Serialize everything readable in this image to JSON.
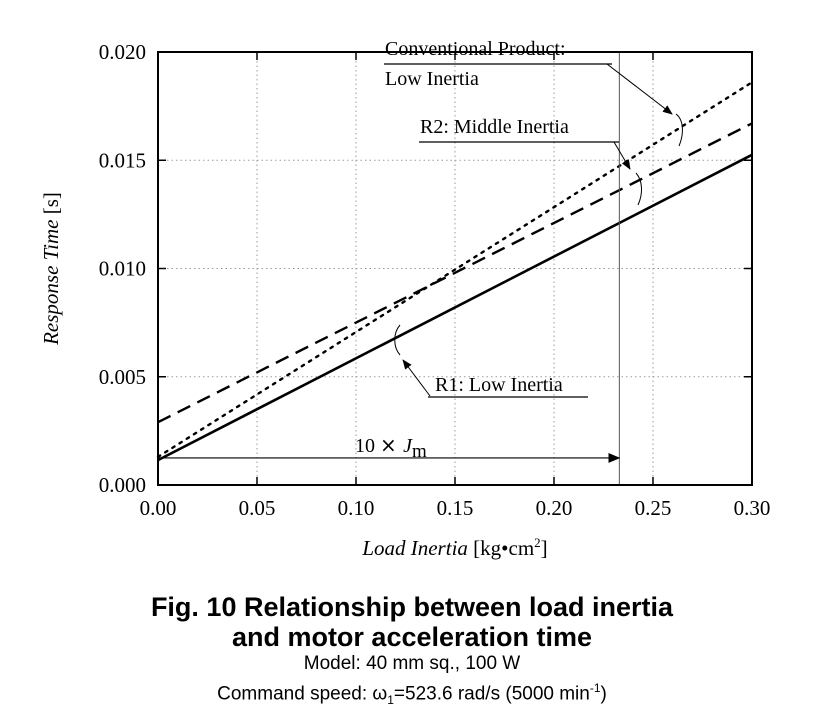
{
  "chart_data": {
    "type": "line",
    "xlabel_italic": "Load Inertia",
    "xlabel_unit": "[kg•cm",
    "xlabel_unit_sup": "2",
    "xlabel_unit_close": "]",
    "ylabel_italic": "Response Time",
    "ylabel_unit": "[s]",
    "xlim": [
      0.0,
      0.3
    ],
    "ylim": [
      0.0,
      0.02
    ],
    "x_ticks": [
      "0.00",
      "0.05",
      "0.10",
      "0.15",
      "0.20",
      "0.25",
      "0.30"
    ],
    "y_ticks": [
      "0.000",
      "0.005",
      "0.010",
      "0.015",
      "0.020"
    ],
    "grid": true,
    "series": [
      {
        "name": "R1: Low Inertia",
        "style": "solid",
        "x": [
          0.0,
          0.3
        ],
        "y": [
          0.00115,
          0.01525
        ]
      },
      {
        "name": "R2: Middle Inertia",
        "style": "dashed",
        "x": [
          0.0,
          0.3
        ],
        "y": [
          0.0029,
          0.0167
        ]
      },
      {
        "name": "Conventional Product: Low Inertia",
        "style": "dotted",
        "x": [
          0.0,
          0.3
        ],
        "y": [
          0.0013,
          0.0186
        ]
      }
    ],
    "annotations": {
      "conventional_line1": "Conventional Product:",
      "conventional_line2": "Low Inertia",
      "r2": "R2: Middle Inertia",
      "r1": "R1: Low Inertia",
      "jm_prefix": "10",
      "jm_times": "×",
      "jm_symbol": "J",
      "jm_sub": "m",
      "jm_x": 0.233
    }
  },
  "caption": {
    "title_line1": "Fig. 10  Relationship between load inertia",
    "title_line2": "and motor acceleration time",
    "sub_line1": "Model: 40 mm sq., 100 W",
    "sub_line2_prefix": "Command speed: ω",
    "sub_line2_sub": "1",
    "sub_line2_mid": "=523.6 rad/s (5000 min",
    "sub_line2_sup": "-1",
    "sub_line2_end": ")"
  }
}
